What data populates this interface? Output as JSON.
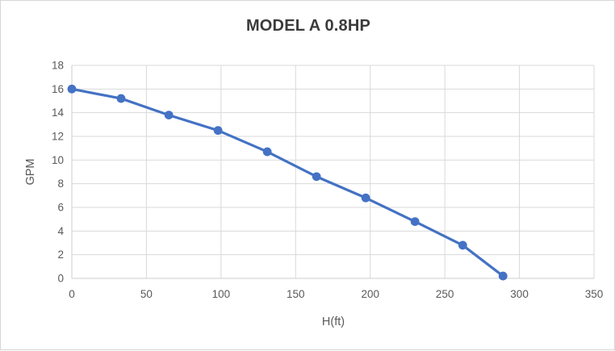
{
  "chart": {
    "title": "MODEL A 0.8HP"
  },
  "chart_data": {
    "type": "line",
    "title": "MODEL A 0.8HP",
    "xlabel": "H(ft)",
    "ylabel": "GPM",
    "xlim": [
      0,
      350
    ],
    "ylim": [
      0,
      18
    ],
    "x_ticks": [
      0,
      50,
      100,
      150,
      200,
      250,
      300,
      350
    ],
    "y_ticks": [
      0,
      2,
      4,
      6,
      8,
      10,
      12,
      14,
      16,
      18
    ],
    "grid": true,
    "legend_position": "none",
    "series": [
      {
        "name": "MODEL A 0.8HP",
        "x": [
          0,
          33,
          65,
          98,
          131,
          164,
          197,
          230,
          262,
          289
        ],
        "y": [
          16,
          15.2,
          13.8,
          12.5,
          10.7,
          8.6,
          6.8,
          4.8,
          2.8,
          0.2
        ]
      }
    ],
    "colors": {
      "line": "#4472C4",
      "marker": "#4472C4",
      "gridline": "#d9d9d9",
      "axis_line": "#cccccc",
      "tick_label": "#595959",
      "title": "#3b3b3b",
      "background": "#ffffff",
      "border": "#d6d6d6"
    }
  }
}
